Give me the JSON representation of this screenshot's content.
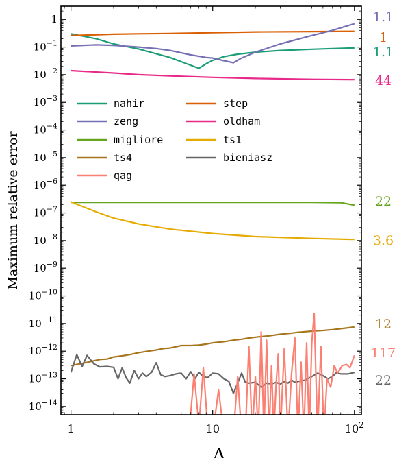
{
  "chart_data": {
    "type": "line",
    "xlabel": "Λ",
    "ylabel": "Maximum relative error",
    "xscale": "log",
    "yscale": "log",
    "xlim": [
      0.85,
      112
    ],
    "ylim": [
      5e-15,
      3.0
    ],
    "grid": false,
    "legend_position": "upper-left",
    "x_ticks": [
      {
        "value": 1,
        "label": "1"
      },
      {
        "value": 10,
        "label": "10"
      },
      {
        "value": 100,
        "label": "10^2"
      }
    ],
    "y_ticks": [
      {
        "exp": 0,
        "label": "1"
      },
      {
        "exp": -1,
        "label": "10^-1"
      },
      {
        "exp": -2,
        "label": "10^-2"
      },
      {
        "exp": -3,
        "label": "10^-3"
      },
      {
        "exp": -4,
        "label": "10^-4"
      },
      {
        "exp": -5,
        "label": "10^-5"
      },
      {
        "exp": -6,
        "label": "10^-6"
      },
      {
        "exp": -7,
        "label": "10^-7"
      },
      {
        "exp": -8,
        "label": "10^-8"
      },
      {
        "exp": -9,
        "label": "10^-9"
      },
      {
        "exp": -10,
        "label": "10^-10"
      },
      {
        "exp": -11,
        "label": "10^-11"
      },
      {
        "exp": -12,
        "label": "10^-12"
      },
      {
        "exp": -13,
        "label": "10^-13"
      },
      {
        "exp": -14,
        "label": "10^-14"
      }
    ],
    "series": [
      {
        "name": "nahir",
        "color": "#1b9e77",
        "right_label": "1.1",
        "points": [
          [
            1,
            0.3
          ],
          [
            1.5,
            0.2
          ],
          [
            2,
            0.13
          ],
          [
            3,
            0.085
          ],
          [
            5,
            0.042
          ],
          [
            7,
            0.022
          ],
          [
            8,
            0.017
          ],
          [
            9,
            0.025
          ],
          [
            10,
            0.033
          ],
          [
            12,
            0.045
          ],
          [
            15,
            0.055
          ],
          [
            20,
            0.065
          ],
          [
            30,
            0.075
          ],
          [
            50,
            0.083
          ],
          [
            100,
            0.093
          ]
        ]
      },
      {
        "name": "step",
        "color": "#d95f02",
        "right_label": "1",
        "points": [
          [
            1,
            0.26
          ],
          [
            2,
            0.29
          ],
          [
            3,
            0.3
          ],
          [
            5,
            0.31
          ],
          [
            10,
            0.33
          ],
          [
            20,
            0.35
          ],
          [
            50,
            0.36
          ],
          [
            100,
            0.37
          ]
        ]
      },
      {
        "name": "zeng",
        "color": "#7570b3",
        "right_label": "1.1",
        "points": [
          [
            1,
            0.11
          ],
          [
            1.5,
            0.12
          ],
          [
            2,
            0.115
          ],
          [
            3,
            0.1
          ],
          [
            4,
            0.088
          ],
          [
            5,
            0.075
          ],
          [
            7,
            0.052
          ],
          [
            9,
            0.042
          ],
          [
            10,
            0.04
          ],
          [
            12,
            0.032
          ],
          [
            14,
            0.027
          ],
          [
            16,
            0.04
          ],
          [
            20,
            0.065
          ],
          [
            30,
            0.13
          ],
          [
            50,
            0.26
          ],
          [
            70,
            0.4
          ],
          [
            100,
            0.7
          ]
        ]
      },
      {
        "name": "oldham",
        "color": "#e7298a",
        "right_label": "44",
        "points": [
          [
            1,
            0.014
          ],
          [
            2,
            0.0115
          ],
          [
            3,
            0.01
          ],
          [
            5,
            0.009
          ],
          [
            10,
            0.008
          ],
          [
            20,
            0.0073
          ],
          [
            50,
            0.0068
          ],
          [
            100,
            0.0066
          ]
        ]
      },
      {
        "name": "migliore",
        "color": "#66a61e",
        "right_label": "22",
        "points": [
          [
            1,
            2.4e-07
          ],
          [
            2,
            2.4e-07
          ],
          [
            5,
            2.4e-07
          ],
          [
            10,
            2.4e-07
          ],
          [
            20,
            2.4e-07
          ],
          [
            50,
            2.4e-07
          ],
          [
            80,
            2.35e-07
          ],
          [
            100,
            1.9e-07
          ]
        ]
      },
      {
        "name": "ts1",
        "color": "#e6ab02",
        "right_label": "3.6",
        "points": [
          [
            1,
            2.5e-07
          ],
          [
            1.5,
            1.1e-07
          ],
          [
            2,
            6.5e-08
          ],
          [
            3,
            4e-08
          ],
          [
            5,
            2.6e-08
          ],
          [
            10,
            1.8e-08
          ],
          [
            20,
            1.4e-08
          ],
          [
            50,
            1.2e-08
          ],
          [
            100,
            1.1e-08
          ]
        ]
      },
      {
        "name": "ts4",
        "color": "#a6761d",
        "right_label": "12",
        "points": [
          [
            1,
            3e-13
          ],
          [
            1.2,
            3.6e-13
          ],
          [
            1.4,
            4.3e-13
          ],
          [
            1.6,
            5e-13
          ],
          [
            1.8,
            5.2e-13
          ],
          [
            2,
            6.2e-13
          ],
          [
            2.3,
            6.8e-13
          ],
          [
            2.6,
            7.5e-13
          ],
          [
            3,
            8.8e-13
          ],
          [
            3.5,
            1e-12
          ],
          [
            4,
            1.1e-12
          ],
          [
            4.5,
            1.25e-12
          ],
          [
            5,
            1.3e-12
          ],
          [
            6,
            1.6e-12
          ],
          [
            7,
            1.6e-12
          ],
          [
            8,
            1.65e-12
          ],
          [
            9,
            1.8e-12
          ],
          [
            10,
            2e-12
          ],
          [
            12,
            2.2e-12
          ],
          [
            14,
            2.5e-12
          ],
          [
            16,
            2.7e-12
          ],
          [
            18,
            3e-12
          ],
          [
            20,
            3.2e-12
          ],
          [
            25,
            3.6e-12
          ],
          [
            30,
            4.1e-12
          ],
          [
            35,
            4.4e-12
          ],
          [
            40,
            4.8e-12
          ],
          [
            50,
            5.3e-12
          ],
          [
            60,
            5.6e-12
          ],
          [
            70,
            6e-12
          ],
          [
            80,
            6.5e-12
          ],
          [
            90,
            7e-12
          ],
          [
            100,
            7.5e-12
          ]
        ]
      },
      {
        "name": "bieniasz",
        "color": "#666666",
        "right_label": "22",
        "points": [
          [
            1,
            1.7e-13
          ],
          [
            1.1,
            7.5e-13
          ],
          [
            1.2,
            2.8e-13
          ],
          [
            1.3,
            7e-13
          ],
          [
            1.45,
            3.5e-13
          ],
          [
            1.6,
            2.7e-13
          ],
          [
            1.8,
            2.8e-13
          ],
          [
            2.0,
            2.6e-13
          ],
          [
            2.15,
            1e-13
          ],
          [
            2.3,
            2.5e-13
          ],
          [
            2.45,
            1.1e-13
          ],
          [
            2.6,
            7e-14
          ],
          [
            2.8,
            2e-13
          ],
          [
            3.0,
            1e-13
          ],
          [
            3.2,
            1.6e-13
          ],
          [
            3.4,
            1.2e-13
          ],
          [
            3.7,
            1.7e-13
          ],
          [
            4.0,
            3.8e-13
          ],
          [
            4.3,
            1.4e-13
          ],
          [
            4.6,
            1.2e-13
          ],
          [
            5.0,
            1.3e-13
          ],
          [
            5.5,
            1.5e-13
          ],
          [
            6.0,
            1.6e-13
          ],
          [
            6.5,
            1e-13
          ],
          [
            7.0,
            1.8e-13
          ],
          [
            7.5,
            1e-13
          ],
          [
            8.0,
            1.7e-13
          ],
          [
            8.6,
            1.2e-13
          ],
          [
            9.2,
            1.1e-13
          ],
          [
            10,
            1.6e-13
          ],
          [
            11,
            1.5e-13
          ],
          [
            12,
            1e-13
          ],
          [
            13,
            8e-14
          ],
          [
            14,
            3e-14
          ],
          [
            15,
            7e-14
          ],
          [
            16,
            1.6e-13
          ],
          [
            17,
            7.5e-14
          ],
          [
            18,
            7e-14
          ],
          [
            20,
            7.5e-14
          ],
          [
            22,
            5e-14
          ],
          [
            24,
            7e-14
          ],
          [
            26,
            6.5e-14
          ],
          [
            28,
            7.5e-14
          ],
          [
            30,
            6.5e-14
          ],
          [
            32,
            8e-14
          ],
          [
            34,
            7e-14
          ],
          [
            36,
            9e-14
          ],
          [
            38,
            7.5e-14
          ],
          [
            40,
            8e-14
          ],
          [
            45,
            9e-14
          ],
          [
            50,
            1.2e-13
          ],
          [
            55,
            1.6e-13
          ],
          [
            60,
            1.3e-13
          ],
          [
            65,
            1e-13
          ],
          [
            70,
            1.2e-13
          ],
          [
            75,
            1.7e-13
          ],
          [
            80,
            1.5e-13
          ],
          [
            90,
            1.5e-13
          ],
          [
            100,
            1.7e-13
          ]
        ]
      },
      {
        "name": "qag",
        "color": "#fb8072",
        "right_label": "117",
        "points": [
          [
            6.8,
            1e-15
          ],
          [
            7.4,
            1.5e-13
          ],
          [
            8.0,
            2e-15
          ],
          [
            8.6,
            2.5e-13
          ],
          [
            9.3,
            1e-15
          ],
          [
            10,
            1e-15
          ],
          [
            11,
            4e-14
          ],
          [
            12,
            1e-15
          ],
          [
            13,
            1e-15
          ],
          [
            14,
            1e-15
          ],
          [
            15,
            1.2e-13
          ],
          [
            16,
            1e-15
          ],
          [
            17,
            1e-15
          ],
          [
            18,
            1.5e-12
          ],
          [
            19,
            1e-15
          ],
          [
            20,
            1.2e-13
          ],
          [
            21,
            1e-15
          ],
          [
            22,
            5e-12
          ],
          [
            23,
            1e-15
          ],
          [
            24,
            2.5e-12
          ],
          [
            25,
            1e-15
          ],
          [
            26,
            3e-13
          ],
          [
            27,
            1e-15
          ],
          [
            28,
            6e-14
          ],
          [
            29,
            8e-13
          ],
          [
            30,
            1e-15
          ],
          [
            32,
            1.2e-12
          ],
          [
            34,
            1e-15
          ],
          [
            36,
            1.5e-13
          ],
          [
            38,
            3e-12
          ],
          [
            40,
            1e-15
          ],
          [
            42,
            4e-13
          ],
          [
            44,
            1e-15
          ],
          [
            46,
            2e-12
          ],
          [
            48,
            1e-15
          ],
          [
            50,
            2e-12
          ],
          [
            52,
            2.3e-11
          ],
          [
            55,
            1e-15
          ],
          [
            58,
            1.5e-12
          ],
          [
            61,
            1e-15
          ],
          [
            64,
            1e-13
          ],
          [
            68,
            5e-14
          ],
          [
            72,
            3e-13
          ],
          [
            76,
            1.6e-13
          ],
          [
            82,
            3e-13
          ],
          [
            88,
            3.3e-13
          ],
          [
            93,
            2.5e-13
          ],
          [
            100,
            7e-13
          ]
        ]
      }
    ],
    "legend": [
      {
        "name": "nahir",
        "color": "#1b9e77"
      },
      {
        "name": "step",
        "color": "#d95f02"
      },
      {
        "name": "zeng",
        "color": "#7570b3"
      },
      {
        "name": "oldham",
        "color": "#e7298a"
      },
      {
        "name": "migliore",
        "color": "#66a61e"
      },
      {
        "name": "ts1",
        "color": "#e6ab02"
      },
      {
        "name": "ts4",
        "color": "#a6761d"
      },
      {
        "name": "bieniasz",
        "color": "#666666"
      },
      {
        "name": "qag",
        "color": "#fb8072"
      }
    ]
  }
}
